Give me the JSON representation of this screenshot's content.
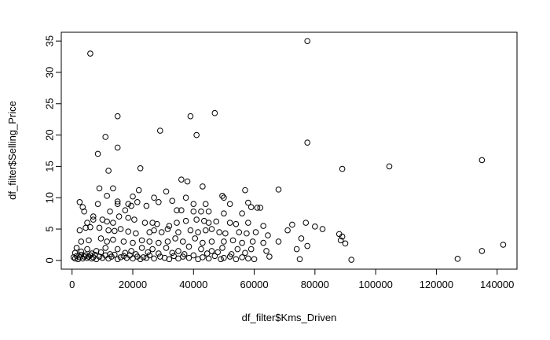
{
  "chart_data": {
    "type": "scatter",
    "title": "",
    "xlabel": "df_filter$Kms_Driven",
    "ylabel": "df_filter$Selling_Price",
    "xlim": [
      -3550,
      146550
    ],
    "ylim": [
      -1.4,
      36.4
    ],
    "x_ticks": [
      0,
      20000,
      40000,
      60000,
      80000,
      100000,
      120000,
      140000
    ],
    "y_ticks": [
      0,
      5,
      10,
      15,
      20,
      25,
      30,
      35
    ],
    "grid": false,
    "legend": "none",
    "marker": "open-circle",
    "points": [
      [
        6000,
        33.0
      ],
      [
        77500,
        35.0
      ],
      [
        47000,
        23.5
      ],
      [
        15000,
        23.0
      ],
      [
        39000,
        23.0
      ],
      [
        29000,
        20.7
      ],
      [
        41000,
        20.0
      ],
      [
        11000,
        19.7
      ],
      [
        77500,
        18.8
      ],
      [
        15000,
        18.0
      ],
      [
        8500,
        17.0
      ],
      [
        135000,
        16.0
      ],
      [
        104500,
        15.0
      ],
      [
        89000,
        14.6
      ],
      [
        22500,
        14.7
      ],
      [
        12000,
        14.3
      ],
      [
        36000,
        12.9
      ],
      [
        38000,
        12.6
      ],
      [
        43000,
        11.8
      ],
      [
        57000,
        11.2
      ],
      [
        68000,
        11.3
      ],
      [
        22000,
        11.2
      ],
      [
        31000,
        11.0
      ],
      [
        9000,
        11.5
      ],
      [
        13500,
        11.5
      ],
      [
        20000,
        10.2
      ],
      [
        27000,
        10.0
      ],
      [
        37500,
        10.0
      ],
      [
        49500,
        10.3
      ],
      [
        50000,
        10.0
      ],
      [
        11500,
        10.3
      ],
      [
        2500,
        9.3
      ],
      [
        8500,
        9.0
      ],
      [
        15000,
        9.4
      ],
      [
        15000,
        9.0
      ],
      [
        18500,
        9.0
      ],
      [
        21500,
        9.3
      ],
      [
        28500,
        9.3
      ],
      [
        33000,
        9.5
      ],
      [
        40000,
        9.0
      ],
      [
        44000,
        9.0
      ],
      [
        52000,
        9.0
      ],
      [
        58000,
        9.2
      ],
      [
        59000,
        8.5
      ],
      [
        61000,
        8.4
      ],
      [
        62000,
        8.4
      ],
      [
        3500,
        8.5
      ],
      [
        4000,
        7.8
      ],
      [
        7000,
        7.0
      ],
      [
        12500,
        7.8
      ],
      [
        17500,
        8.0
      ],
      [
        19500,
        8.7
      ],
      [
        24500,
        8.7
      ],
      [
        34500,
        8.0
      ],
      [
        36000,
        8.0
      ],
      [
        40000,
        7.8
      ],
      [
        42500,
        7.8
      ],
      [
        45000,
        7.8
      ],
      [
        50000,
        7.5
      ],
      [
        56000,
        7.5
      ],
      [
        5000,
        6.0
      ],
      [
        7000,
        6.5
      ],
      [
        10000,
        6.5
      ],
      [
        11500,
        6.2
      ],
      [
        13500,
        6.0
      ],
      [
        15500,
        7.0
      ],
      [
        18500,
        6.8
      ],
      [
        20500,
        6.5
      ],
      [
        24000,
        6.0
      ],
      [
        26500,
        6.0
      ],
      [
        28000,
        5.8
      ],
      [
        32000,
        5.5
      ],
      [
        34500,
        6.0
      ],
      [
        37500,
        6.3
      ],
      [
        41000,
        6.5
      ],
      [
        43500,
        6.3
      ],
      [
        45000,
        6.0
      ],
      [
        47500,
        6.2
      ],
      [
        52000,
        6.0
      ],
      [
        54000,
        5.8
      ],
      [
        58000,
        6.0
      ],
      [
        63000,
        5.5
      ],
      [
        72500,
        5.7
      ],
      [
        77000,
        6.0
      ],
      [
        80000,
        5.4
      ],
      [
        2500,
        4.8
      ],
      [
        4500,
        5.2
      ],
      [
        6000,
        5.3
      ],
      [
        9000,
        5.2
      ],
      [
        12000,
        4.8
      ],
      [
        14000,
        4.7
      ],
      [
        16000,
        5.0
      ],
      [
        18500,
        4.6
      ],
      [
        21000,
        4.3
      ],
      [
        25500,
        4.5
      ],
      [
        27000,
        4.8
      ],
      [
        29500,
        4.5
      ],
      [
        31500,
        5.0
      ],
      [
        35000,
        4.5
      ],
      [
        39000,
        4.8
      ],
      [
        41500,
        4.5
      ],
      [
        44000,
        4.8
      ],
      [
        46000,
        5.0
      ],
      [
        48500,
        4.5
      ],
      [
        50500,
        4.3
      ],
      [
        55000,
        4.5
      ],
      [
        57500,
        4.3
      ],
      [
        60500,
        4.5
      ],
      [
        64500,
        4.0
      ],
      [
        71000,
        4.8
      ],
      [
        75500,
        3.5
      ],
      [
        82500,
        5.0
      ],
      [
        88000,
        4.2
      ],
      [
        89000,
        3.8
      ],
      [
        3000,
        3.0
      ],
      [
        5500,
        3.2
      ],
      [
        9500,
        3.5
      ],
      [
        11500,
        3.0
      ],
      [
        13500,
        3.3
      ],
      [
        17000,
        3.0
      ],
      [
        20000,
        2.8
      ],
      [
        23000,
        3.2
      ],
      [
        25500,
        3.0
      ],
      [
        28500,
        2.8
      ],
      [
        31500,
        3.0
      ],
      [
        34000,
        3.5
      ],
      [
        36500,
        3.0
      ],
      [
        40500,
        3.5
      ],
      [
        43000,
        2.8
      ],
      [
        46000,
        3.0
      ],
      [
        50000,
        3.0
      ],
      [
        53000,
        3.2
      ],
      [
        56000,
        2.8
      ],
      [
        59500,
        3.0
      ],
      [
        63000,
        2.8
      ],
      [
        68000,
        3.0
      ],
      [
        88500,
        3.2
      ],
      [
        90000,
        2.7
      ],
      [
        1500,
        2.0
      ],
      [
        5000,
        1.8
      ],
      [
        8000,
        1.5
      ],
      [
        11000,
        2.0
      ],
      [
        15000,
        1.8
      ],
      [
        19500,
        1.5
      ],
      [
        23000,
        2.0
      ],
      [
        26500,
        1.8
      ],
      [
        31000,
        2.0
      ],
      [
        35000,
        1.5
      ],
      [
        38500,
        2.2
      ],
      [
        42500,
        1.8
      ],
      [
        46000,
        1.5
      ],
      [
        49500,
        2.0
      ],
      [
        54500,
        1.8
      ],
      [
        59000,
        1.8
      ],
      [
        64000,
        1.5
      ],
      [
        74000,
        1.8
      ],
      [
        77500,
        2.3
      ],
      [
        135000,
        1.5
      ],
      [
        142000,
        2.5
      ],
      [
        500,
        0.5
      ],
      [
        1000,
        0.3
      ],
      [
        1500,
        0.7
      ],
      [
        2000,
        0.2
      ],
      [
        2500,
        0.5
      ],
      [
        3000,
        0.9
      ],
      [
        3500,
        0.3
      ],
      [
        4000,
        0.6
      ],
      [
        4500,
        0.8
      ],
      [
        5000,
        0.4
      ],
      [
        5500,
        0.6
      ],
      [
        6000,
        0.8
      ],
      [
        6500,
        0.3
      ],
      [
        7000,
        0.5
      ],
      [
        7500,
        0.9
      ],
      [
        8000,
        0.2
      ],
      [
        9000,
        0.6
      ],
      [
        10000,
        0.4
      ],
      [
        11000,
        0.8
      ],
      [
        12000,
        0.3
      ],
      [
        13000,
        0.6
      ],
      [
        14000,
        0.9
      ],
      [
        15000,
        0.2
      ],
      [
        16000,
        0.5
      ],
      [
        17000,
        0.7
      ],
      [
        18000,
        0.4
      ],
      [
        19000,
        0.8
      ],
      [
        20000,
        0.3
      ],
      [
        21500,
        0.6
      ],
      [
        22500,
        0.2
      ],
      [
        23500,
        0.5
      ],
      [
        24500,
        0.4
      ],
      [
        25500,
        0.8
      ],
      [
        27000,
        0.3
      ],
      [
        29000,
        0.6
      ],
      [
        30500,
        0.4
      ],
      [
        32000,
        0.2
      ],
      [
        33500,
        0.7
      ],
      [
        35000,
        0.3
      ],
      [
        36500,
        0.6
      ],
      [
        38500,
        0.4
      ],
      [
        40000,
        0.8
      ],
      [
        41500,
        0.2
      ],
      [
        43000,
        0.5
      ],
      [
        45000,
        0.3
      ],
      [
        47000,
        0.7
      ],
      [
        49000,
        0.2
      ],
      [
        50000,
        0.4
      ],
      [
        52000,
        0.6
      ],
      [
        54000,
        0.2
      ],
      [
        56000,
        0.5
      ],
      [
        58000,
        0.3
      ],
      [
        60000,
        0.2
      ],
      [
        65000,
        0.6
      ],
      [
        75000,
        0.2
      ],
      [
        92000,
        0.1
      ],
      [
        127000,
        0.25
      ],
      [
        1000,
        1.2
      ],
      [
        3000,
        1.4
      ],
      [
        6500,
        1.1
      ],
      [
        9500,
        1.3
      ],
      [
        12500,
        1.0
      ],
      [
        17500,
        1.2
      ],
      [
        21000,
        1.0
      ],
      [
        25000,
        1.3
      ],
      [
        28500,
        1.1
      ],
      [
        33000,
        1.2
      ],
      [
        37000,
        1.0
      ],
      [
        44500,
        1.1
      ],
      [
        48000,
        1.3
      ],
      [
        52500,
        1.0
      ],
      [
        57000,
        1.2
      ]
    ]
  }
}
